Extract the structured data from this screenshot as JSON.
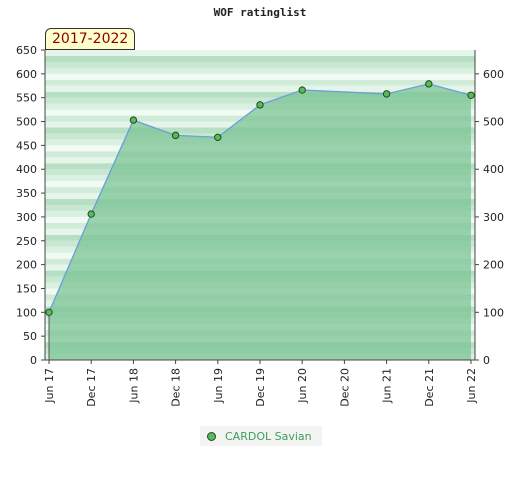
{
  "chart_data": {
    "type": "area",
    "title": "WOF ratinglist",
    "period": "2017-2022",
    "categories": [
      "Jun 17",
      "Dec 17",
      "Jun 18",
      "Dec 18",
      "Jun 19",
      "Dec 19",
      "Jun 20",
      "Dec 20",
      "Jun 21",
      "Dec 21",
      "Jun 22"
    ],
    "series": [
      {
        "name": "CARDOL Savian",
        "values": [
          100,
          306,
          503,
          471,
          467,
          535,
          566,
          null,
          558,
          579,
          555
        ]
      }
    ],
    "y_left": {
      "ylim": [
        0,
        650
      ],
      "ticks": [
        "0",
        "50",
        "100",
        "150",
        "200",
        "250",
        "300",
        "350",
        "400",
        "450",
        "500",
        "550",
        "600",
        "650"
      ]
    },
    "y_right": {
      "ticks": [
        "0",
        "100",
        "200",
        "300",
        "400",
        "500",
        "600"
      ]
    },
    "legend_position": "bottom-center",
    "colors": {
      "line": "#6a9fd8",
      "area": "#7cc495",
      "marker": "#5cb85c",
      "marker_edge": "#1d4d1d",
      "legend_text": "#3aa05a"
    }
  }
}
